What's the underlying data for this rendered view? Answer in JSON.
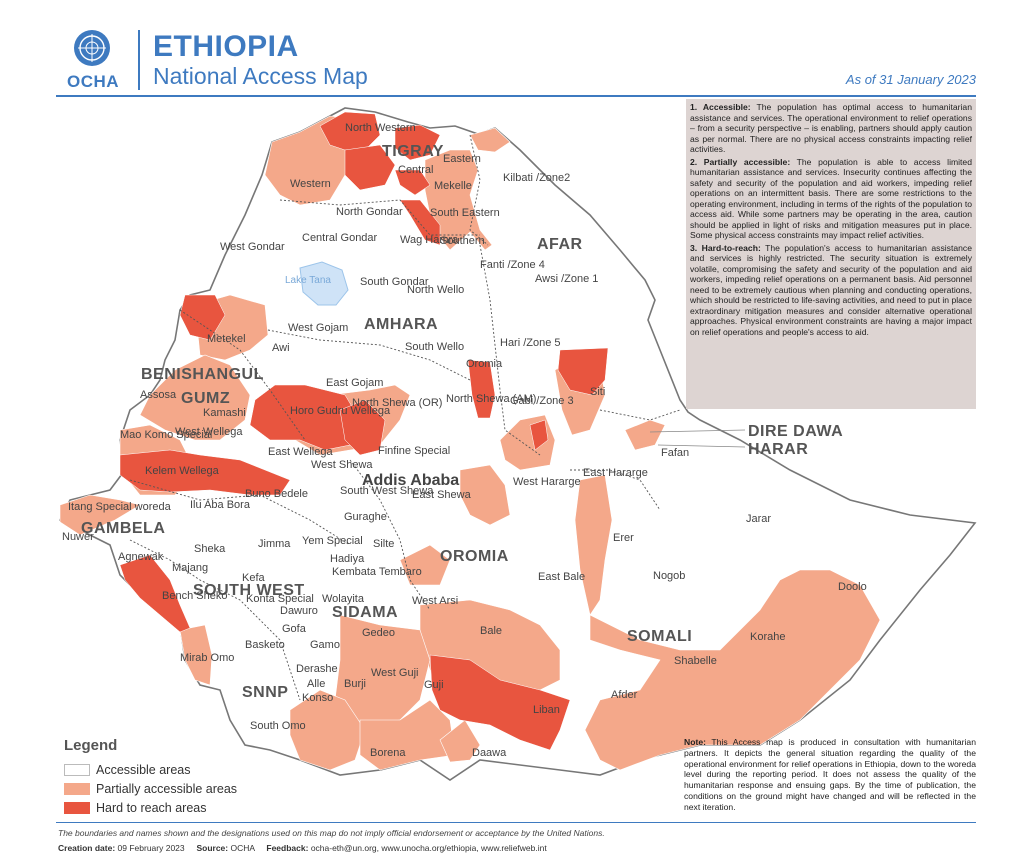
{
  "header": {
    "org": "OCHA",
    "country": "ETHIOPIA",
    "map_title": "National Access Map",
    "as_of": "As of  31 January 2023"
  },
  "colors": {
    "accessible": "#ffffff",
    "partial": "#f4a88a",
    "hard": "#e8553f",
    "brand": "#3e7ac0",
    "lake": "#cfe3f7"
  },
  "definitions": [
    {
      "head": "1. Accessible:",
      "text": " The population has optimal access to humanitarian assistance and services. The operational environment to relief operations – from a security perspective – is enabling, partners should apply caution as per normal. There are no physical access constraints impacting relief activities."
    },
    {
      "head": "2. Partially accessible:",
      "text": " The population is able to access limited humanitarian assistance and services. Insecurity continues affecting the safety and security of the population and aid workers, impeding relief operations on an intermittent basis. There are some restrictions to the operating environment, including in terms of the rights of the population to access aid. While some partners may be operating in the area, caution should be applied in light of risks and mitigation measures put in place. Some physical access constraints may impact relief activities."
    },
    {
      "head": "3. Hard-to-reach:",
      "text": " The population's access to humanitarian assistance and services is highly restricted. The security situation is extremely volatile, compromising the safety and security of the population and aid workers, impeding relief operations on a permanent basis. Aid personnel need to be extremely cautious when planning and conducting operations, which should be restricted to life-saving activities, and need to put in place extraordinary mitigation measures and consider alternative operational approaches. Physical environment constraints are having a major impact on relief operations and people's access to aid."
    }
  ],
  "note": {
    "head": "Note:",
    "text": " This Access map is produced in consultation with humanitarian partners. It depicts the general situation regarding the quality of the operational environment for relief operations in Ethiopia, down to the woreda level during the reporting period. It does not assess the quality of the humanitarian response and ensuing gaps. By the time of publication, the conditions on the ground might have changed and will be reflected in the next iteration."
  },
  "legend": {
    "title": "Legend",
    "items": [
      {
        "label": "Accessible areas",
        "color": "#ffffff"
      },
      {
        "label": "Partially accessible areas",
        "color": "#f4a88a"
      },
      {
        "label": "Hard to reach areas",
        "color": "#e8553f"
      }
    ]
  },
  "map": {
    "regions": [
      "TIGRAY",
      "AFAR",
      "AMHARA",
      "BENISHANGUL",
      "GUMZ",
      "GAMBELA",
      "SOUTH WEST",
      "SIDAMA",
      "OROMIA",
      "SOMALI",
      "SNNP"
    ],
    "capital": "Addis Ababa",
    "lake": "Lake Tana",
    "callouts": [
      "DIRE DAWA",
      "HARAR"
    ],
    "zones": [
      "North Western",
      "Western",
      "Central",
      "Eastern",
      "Mekelle",
      "South Eastern",
      "Southern",
      "Kilbati /Zone2",
      "North Gondar",
      "Central Gondar",
      "West Gondar",
      "Wag Hamra",
      "South Gondar",
      "North Wello",
      "Fanti /Zone 4",
      "Awsi /Zone 1",
      "Metekel",
      "West Gojam",
      "Awi",
      "South Wello",
      "Oromia",
      "Hari /Zone 5",
      "Siti",
      "Assosa",
      "Kamashi",
      "East Gojam",
      "Horo Gudru Wellega",
      "North Shewa (OR)",
      "North Shewa (AM)",
      "Gabi /Zone 3",
      "Mao Komo Special",
      "West Wellega",
      "East Wellega",
      "West Shewa",
      "Finfine Special",
      "Fafan",
      "Kelem Wellega",
      "East Hararge",
      "Itang Special woreda",
      "Buno Bedele",
      "South West Shewa",
      "East Shewa",
      "West Hararge",
      "Nuwer",
      "Ilu Aba Bora",
      "Jarar",
      "Agnewak",
      "Sheka",
      "Jimma",
      "Yem Special",
      "Guraghe",
      "Silte",
      "Hadiya",
      "Erer",
      "Majang",
      "Kefa",
      "Kembata Tembaro",
      "Nogob",
      "Bench Sheko",
      "Konta Special",
      "Wolayita",
      "East Bale",
      "Dawuro",
      "West Arsi",
      "Doolo",
      "Gofa",
      "Basketo",
      "Gamo",
      "Gedeo",
      "Bale",
      "Korahe",
      "Mirab Omo",
      "Derashe",
      "Alle",
      "Konso",
      "Burji",
      "West Guji",
      "Guji",
      "Shabelle",
      "Afder",
      "Liban",
      "South Omo",
      "Borena",
      "Daawa"
    ]
  },
  "footer": {
    "disclaimer": "The boundaries and names shown and the designations used on this map do not imply official endorsement or acceptance by the United Nations.",
    "creation_label": "Creation date:",
    "creation_value": "09 February 2023",
    "source_label": "Source:",
    "source_value": "OCHA",
    "feedback_label": "Feedback:",
    "feedback_value": "ocha-eth@un.org, www.unocha.org/ethiopia, www.reliefweb.int"
  }
}
